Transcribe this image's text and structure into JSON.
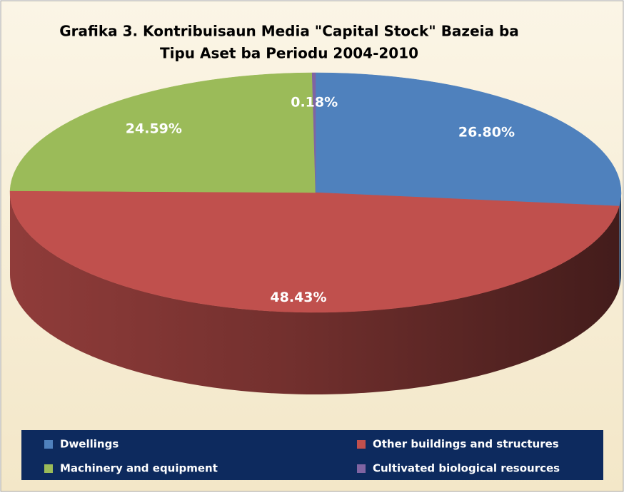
{
  "chart_data": {
    "type": "pie3d",
    "title": [
      "Grafika 3. Kontribuisaun Media \"Capital Stock\" Bazeia ba",
      "Tipu Aset ba Periodu 2004-2010"
    ],
    "categories": [
      "Dwellings",
      "Other buildings and structures",
      "Machinery and equipment",
      "Cultivated biological resources"
    ],
    "values": [
      26.8,
      48.43,
      24.59,
      0.18
    ],
    "value_labels": [
      "26.80%",
      "48.43%",
      "24.59%",
      "0.18%"
    ],
    "colors": [
      "#4f81bd",
      "#c0504d",
      "#9bbb59",
      "#8064a2"
    ],
    "legend": "bottom"
  }
}
